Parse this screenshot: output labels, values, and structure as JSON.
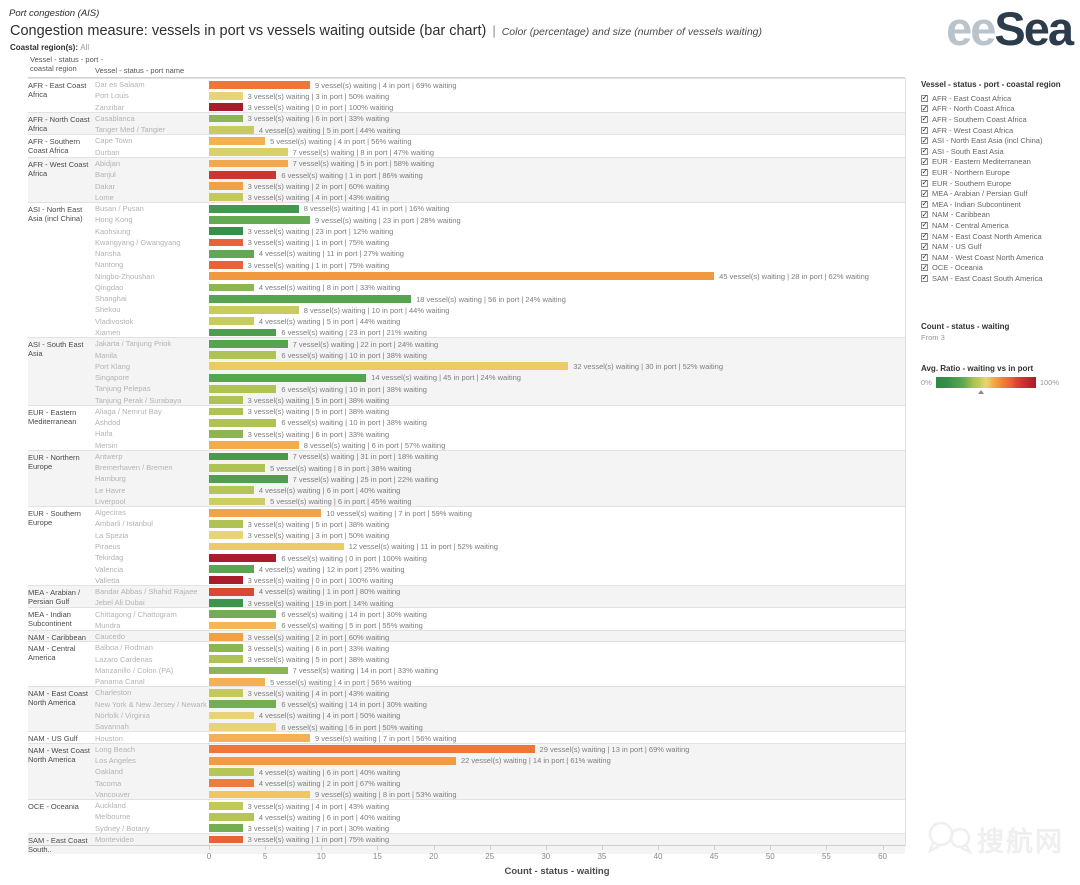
{
  "header": {
    "workbook_title": "Port congestion (AIS)",
    "title": "Congestion measure: vessels in port vs vessels waiting outside (bar chart)",
    "separator": "|",
    "subtitle": "Color (percentage) and size (number of vessels waiting)",
    "coastal_label": "Coastal region(s):",
    "coastal_value": "All"
  },
  "logo": {
    "part1": "ee",
    "part2": "Sea",
    "color_light": "#b9c3cc",
    "color_dark": "#2d3c4c"
  },
  "columns": {
    "region_header": "Vessel - status - port - coastal region",
    "port_header": "Vessel - status - port name"
  },
  "labels": {
    "waiting_suffix": "vessel(s) waiting",
    "inport_suffix": "in port",
    "pct_suffix": "% waiting",
    "separator": "|"
  },
  "chart_data": {
    "type": "bar",
    "orientation": "horizontal",
    "xlabel": "Count - status - waiting",
    "x_ticks": [
      0,
      5,
      10,
      15,
      20,
      25,
      30,
      35,
      40,
      45,
      50,
      55,
      60
    ],
    "xlim": [
      0,
      62
    ],
    "grid": false,
    "value_note": "bar length = vessels waiting; bar color = % waiting",
    "groups": [
      {
        "region": "AFR - East Coast Africa",
        "ports": [
          [
            "Dar es Salaam",
            9,
            4,
            69
          ],
          [
            "Port Louis",
            3,
            3,
            50
          ],
          [
            "Zanzibar",
            3,
            0,
            100
          ]
        ]
      },
      {
        "region": "AFR - North Coast Africa",
        "ports": [
          [
            "Casablanca",
            3,
            6,
            33
          ],
          [
            "Tanger Med / Tangier",
            4,
            5,
            44
          ]
        ]
      },
      {
        "region": "AFR - Southern Coast Africa",
        "ports": [
          [
            "Cape Town",
            5,
            4,
            56
          ],
          [
            "Durban",
            7,
            8,
            47
          ]
        ]
      },
      {
        "region": "AFR - West Coast Africa",
        "ports": [
          [
            "Abidjan",
            7,
            5,
            58
          ],
          [
            "Banjul",
            6,
            1,
            86
          ],
          [
            "Dakar",
            3,
            2,
            60
          ],
          [
            "Lome",
            3,
            4,
            43
          ]
        ]
      },
      {
        "region": "ASI - North East Asia (incl China)",
        "ports": [
          [
            "Busan / Pusan",
            8,
            41,
            16
          ],
          [
            "Hong Kong",
            9,
            23,
            28
          ],
          [
            "Kaohsiung",
            3,
            23,
            12
          ],
          [
            "Kwangyang / Gwangyang",
            3,
            1,
            75
          ],
          [
            "Nansha",
            4,
            11,
            27
          ],
          [
            "Nantong",
            3,
            1,
            75
          ],
          [
            "Ningbo-Zhoushan",
            45,
            28,
            62
          ],
          [
            "Qingdao",
            4,
            8,
            33
          ],
          [
            "Shanghai",
            18,
            56,
            24
          ],
          [
            "Shekou",
            8,
            10,
            44
          ],
          [
            "Vladivostok",
            4,
            5,
            44
          ],
          [
            "Xiamen",
            6,
            23,
            21
          ]
        ]
      },
      {
        "region": "ASI - South East Asia",
        "ports": [
          [
            "Jakarta / Tanjung Priok",
            7,
            22,
            24
          ],
          [
            "Manila",
            6,
            10,
            38
          ],
          [
            "Port Klang",
            32,
            30,
            52
          ],
          [
            "Singapore",
            14,
            45,
            24
          ],
          [
            "Tanjung Pelepas",
            6,
            10,
            38
          ],
          [
            "Tanjung Perak / Surabaya",
            3,
            5,
            38
          ]
        ]
      },
      {
        "region": "EUR - Eastern Mediterranean",
        "ports": [
          [
            "Aliaga / Nemrut Bay",
            3,
            5,
            38
          ],
          [
            "Ashdod",
            6,
            10,
            38
          ],
          [
            "Haifa",
            3,
            6,
            33
          ],
          [
            "Mersin",
            8,
            6,
            57
          ]
        ]
      },
      {
        "region": "EUR - Northern Europe",
        "ports": [
          [
            "Antwerp",
            7,
            31,
            18
          ],
          [
            "Bremerhaven / Bremen",
            5,
            8,
            38
          ],
          [
            "Hamburg",
            7,
            25,
            22
          ],
          [
            "Le Havre",
            4,
            6,
            40
          ],
          [
            "Liverpool",
            5,
            6,
            45
          ]
        ]
      },
      {
        "region": "EUR - Southern Europe",
        "ports": [
          [
            "Algeciras",
            10,
            7,
            59
          ],
          [
            "Ambarli / Istanbul",
            3,
            5,
            38
          ],
          [
            "La Spezia",
            3,
            3,
            50
          ],
          [
            "Piraeus",
            12,
            11,
            52
          ],
          [
            "Tekirdag",
            6,
            0,
            100
          ],
          [
            "Valencia",
            4,
            12,
            25
          ],
          [
            "Valletta",
            3,
            0,
            100
          ]
        ]
      },
      {
        "region": "MEA - Arabian / Persian Gulf",
        "ports": [
          [
            "Bandar Abbas / Shahid Rajaee",
            4,
            1,
            80
          ],
          [
            "Jebel Ali Dubai",
            3,
            19,
            14
          ]
        ]
      },
      {
        "region": "MEA - Indian Subcontinent",
        "ports": [
          [
            "Chittagong / Chattogram",
            6,
            14,
            30
          ],
          [
            "Mundra",
            6,
            5,
            55
          ]
        ]
      },
      {
        "region": "NAM - Caribbean",
        "ports": [
          [
            "Caucedo",
            3,
            2,
            60
          ]
        ]
      },
      {
        "region": "NAM - Central America",
        "ports": [
          [
            "Balboa / Rodman",
            3,
            6,
            33
          ],
          [
            "Lazaro Cardenas",
            3,
            5,
            38
          ],
          [
            "Manzanillo / Colon (PA)",
            7,
            14,
            33
          ],
          [
            "Panama Canal",
            5,
            4,
            56
          ]
        ]
      },
      {
        "region": "NAM - East Coast North America",
        "ports": [
          [
            "Charleston",
            3,
            4,
            43
          ],
          [
            "New York & New Jersey / Newark",
            6,
            14,
            30
          ],
          [
            "Norfolk / Virginia",
            4,
            4,
            50
          ],
          [
            "Savannah",
            6,
            6,
            50
          ]
        ]
      },
      {
        "region": "NAM - US Gulf",
        "ports": [
          [
            "Houston",
            9,
            7,
            56
          ]
        ]
      },
      {
        "region": "NAM - West Coast North America",
        "ports": [
          [
            "Long Beach",
            29,
            13,
            69
          ],
          [
            "Los Angeles",
            22,
            14,
            61
          ],
          [
            "Oakland",
            4,
            6,
            40
          ],
          [
            "Tacoma",
            4,
            2,
            67
          ],
          [
            "Vancouver",
            9,
            8,
            53
          ]
        ]
      },
      {
        "region": "OCE - Oceania",
        "ports": [
          [
            "Auckland",
            3,
            4,
            43
          ],
          [
            "Melbourne",
            4,
            6,
            40
          ],
          [
            "Sydney / Botany",
            3,
            7,
            30
          ]
        ]
      },
      {
        "region": "SAM - East Coast South..",
        "ports": [
          [
            "Montevideo",
            3,
            1,
            75
          ]
        ]
      }
    ]
  },
  "color_scale": [
    [
      0,
      "#2e8b44"
    ],
    [
      12,
      "#35904a"
    ],
    [
      16,
      "#44974c"
    ],
    [
      22,
      "#4f9f4f"
    ],
    [
      28,
      "#64aa53"
    ],
    [
      33,
      "#8db551"
    ],
    [
      38,
      "#aec354"
    ],
    [
      43,
      "#c2c95a"
    ],
    [
      47,
      "#d9d069"
    ],
    [
      50,
      "#e8d476"
    ],
    [
      53,
      "#eec75f"
    ],
    [
      56,
      "#f2b152"
    ],
    [
      59,
      "#f2a347"
    ],
    [
      62,
      "#f0993f"
    ],
    [
      67,
      "#ed7d3a"
    ],
    [
      75,
      "#e8633a"
    ],
    [
      80,
      "#d94833"
    ],
    [
      86,
      "#cc3631"
    ],
    [
      100,
      "#a91c2c"
    ]
  ],
  "sidebar": {
    "filter_title": "Vessel - status - port - coastal region",
    "filter_items": [
      "AFR - East Coast Africa",
      "AFR - North Coast Africa",
      "AFR - Southern Coast Africa",
      "AFR - West Coast Africa",
      "ASI - North East Asia (incl China)",
      "ASI - South East Asia",
      "EUR - Eastern Mediterranean",
      "EUR - Northern Europe",
      "EUR - Southern Europe",
      "MEA - Arabian / Persian Gulf",
      "MEA - Indian Subcontinent",
      "NAM - Caribbean",
      "NAM - Central America",
      "NAM - East Coast North America",
      "NAM - US Gulf",
      "NAM - West Coast North America",
      "OCE - Oceania",
      "SAM - East Coast South America"
    ],
    "size_legend_title": "Count - status - waiting",
    "size_legend_value": "From 3",
    "color_legend_title": "Avg. Ratio - waiting vs in port",
    "color_legend_min": "0%",
    "color_legend_max": "100%",
    "color_marker_pct": 45
  },
  "watermark": {
    "text": "搜航网"
  }
}
